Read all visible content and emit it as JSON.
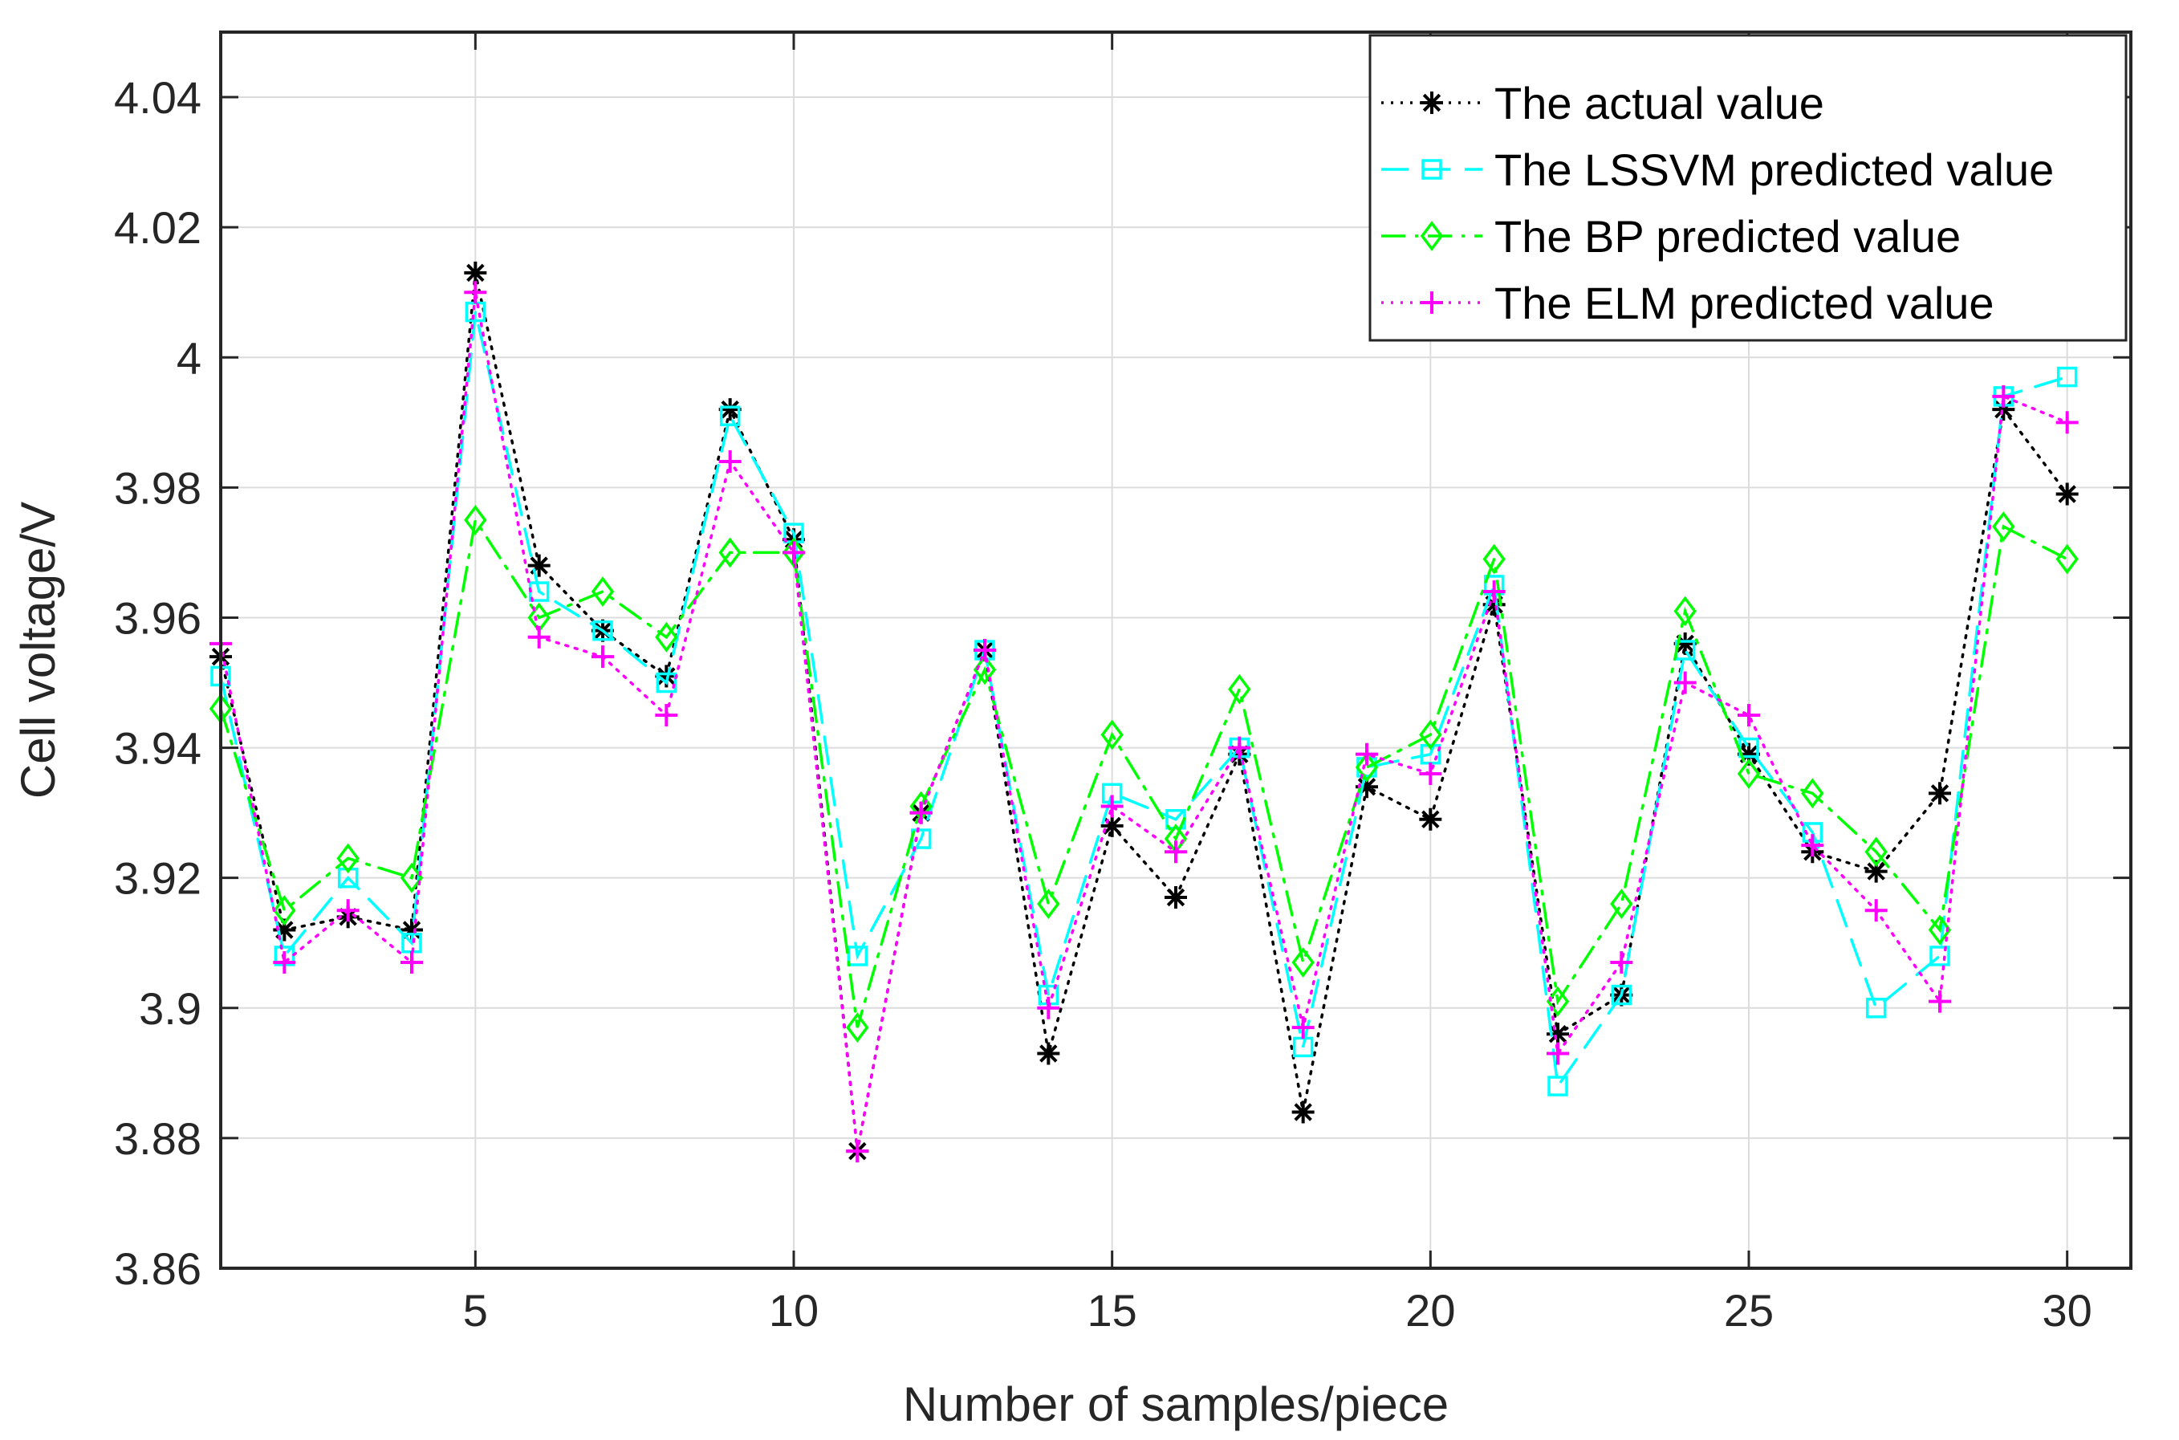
{
  "chart_data": {
    "type": "line",
    "title": "",
    "xlabel": "Number of samples/piece",
    "ylabel": "Cell voltage/V",
    "xlim": [
      1,
      31
    ],
    "ylim": [
      3.86,
      4.05
    ],
    "grid": true,
    "legend_position": "top-right",
    "x": [
      1,
      2,
      3,
      4,
      5,
      6,
      7,
      8,
      9,
      10,
      11,
      12,
      13,
      14,
      15,
      16,
      17,
      18,
      19,
      20,
      21,
      22,
      23,
      24,
      25,
      26,
      27,
      28,
      29,
      30
    ],
    "x_ticks": [
      5,
      10,
      15,
      20,
      25,
      30
    ],
    "x_tick_labels": [
      "5",
      "10",
      "15",
      "20",
      "25",
      "30"
    ],
    "y_ticks": [
      3.86,
      3.88,
      3.9,
      3.92,
      3.94,
      3.96,
      3.98,
      4.0,
      4.02,
      4.04
    ],
    "y_tick_labels": [
      "3.86",
      "3.88",
      "3.9",
      "3.92",
      "3.94",
      "3.96",
      "3.98",
      "4",
      "4.02",
      "4.04"
    ],
    "series": [
      {
        "name": "The actual value",
        "color": "#000000",
        "line_style": "dotted",
        "marker": "asterisk",
        "values": [
          3.954,
          3.912,
          3.914,
          3.912,
          4.013,
          3.968,
          3.958,
          3.951,
          3.992,
          3.972,
          3.878,
          3.93,
          3.955,
          3.893,
          3.928,
          3.917,
          3.939,
          3.884,
          3.934,
          3.929,
          3.962,
          3.896,
          3.902,
          3.956,
          3.939,
          3.924,
          3.921,
          3.933,
          3.992,
          3.979
        ]
      },
      {
        "name": "The LSSVM predicted value",
        "color": "#00ffff",
        "line_style": "dashed",
        "marker": "square",
        "values": [
          3.951,
          3.908,
          3.92,
          3.91,
          4.007,
          3.964,
          3.958,
          3.95,
          3.991,
          3.973,
          3.908,
          3.926,
          3.955,
          3.902,
          3.933,
          3.929,
          3.94,
          3.894,
          3.937,
          3.939,
          3.965,
          3.888,
          3.902,
          3.955,
          3.94,
          3.927,
          3.9,
          3.908,
          3.994,
          3.997
        ]
      },
      {
        "name": "The BP predicted value",
        "color": "#00ff00",
        "line_style": "dashdot",
        "marker": "diamond",
        "values": [
          3.946,
          3.915,
          3.923,
          3.92,
          3.975,
          3.96,
          3.964,
          3.957,
          3.97,
          3.97,
          3.897,
          3.931,
          3.952,
          3.916,
          3.942,
          3.926,
          3.949,
          3.907,
          3.937,
          3.942,
          3.969,
          3.901,
          3.916,
          3.961,
          3.936,
          3.933,
          3.924,
          3.912,
          3.974,
          3.969
        ]
      },
      {
        "name": "The ELM predicted value",
        "color": "#ff00ff",
        "line_style": "dotted",
        "marker": "plus",
        "values": [
          3.956,
          3.907,
          3.915,
          3.907,
          4.01,
          3.957,
          3.954,
          3.945,
          3.984,
          3.97,
          3.878,
          3.93,
          3.955,
          3.9,
          3.931,
          3.924,
          3.94,
          3.897,
          3.939,
          3.936,
          3.964,
          3.893,
          3.907,
          3.95,
          3.945,
          3.925,
          3.915,
          3.901,
          3.994,
          3.99
        ]
      }
    ]
  }
}
